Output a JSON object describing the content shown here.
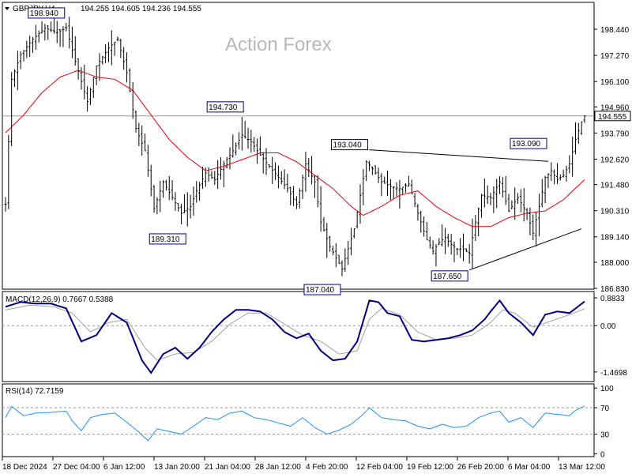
{
  "header": {
    "symbol": "GBPJPY,H4",
    "ohlc": "194.255 194.605 194.236 194.555"
  },
  "watermark": "Action Forex",
  "colors": {
    "candle": "#000000",
    "ma": "#e8000b",
    "macd": "#000080",
    "signal": "#a0a0a0",
    "rsi": "#1e90ff",
    "trendline": "#000000",
    "grid_h": "#9a9a9a"
  },
  "chart_data": [
    {
      "type": "line",
      "title": "GBPJPY,H4",
      "subtype": "bar-ohlc",
      "ylim": [
        186.83,
        199.61
      ],
      "y_ticks": [
        "198.440",
        "197.270",
        "196.100",
        "194.960",
        "193.790",
        "192.620",
        "191.480",
        "190.310",
        "189.140",
        "188.000",
        "186.830"
      ],
      "x_ticks": [
        "18 Dec 2024",
        "27 Dec 04:00",
        "6 Jan 12:00",
        "13 Jan 20:00",
        "21 Jan 04:00",
        "28 Jan 12:00",
        "4 Feb 20:00",
        "12 Feb 04:00",
        "19 Feb 12:00",
        "26 Feb 20:00",
        "6 Mar 04:00",
        "13 Mar 12:00"
      ],
      "current_price": "194.555",
      "annotations": [
        {
          "label": "198.940",
          "bar": 20,
          "value": 198.94
        },
        {
          "label": "194.730",
          "bar": 79,
          "value": 194.73
        },
        {
          "label": "189.310",
          "bar": 60,
          "value": 189.31
        },
        {
          "label": "187.040",
          "bar": 111,
          "value": 187.04
        },
        {
          "label": "193.040",
          "bar": 120,
          "value": 193.04
        },
        {
          "label": "193.090",
          "bar": 179,
          "value": 193.09
        },
        {
          "label": "187.650",
          "bar": 153,
          "value": 187.65
        }
      ],
      "trendlines": [
        {
          "from": {
            "bar": 120,
            "value": 193.04
          },
          "to": {
            "bar": 179,
            "value": 192.52
          }
        },
        {
          "from": {
            "bar": 153,
            "value": 187.65
          },
          "to": {
            "bar": 190,
            "value": 189.5
          }
        }
      ],
      "close_path": [
        [
          0,
          190.6
        ],
        [
          2,
          196.2
        ],
        [
          5,
          197.3
        ],
        [
          9,
          198.0
        ],
        [
          13,
          198.5
        ],
        [
          17,
          198.3
        ],
        [
          20,
          198.5
        ],
        [
          23,
          197.0
        ],
        [
          27,
          195.2
        ],
        [
          30,
          196.8
        ],
        [
          34,
          197.6
        ],
        [
          37,
          198.0
        ],
        [
          40,
          196.5
        ],
        [
          43,
          194.0
        ],
        [
          46,
          193.0
        ],
        [
          49,
          190.4
        ],
        [
          52,
          191.6
        ],
        [
          55,
          190.9
        ],
        [
          58,
          190.2
        ],
        [
          61,
          190.5
        ],
        [
          63,
          191.2
        ],
        [
          66,
          192.0
        ],
        [
          69,
          191.7
        ],
        [
          72,
          192.4
        ],
        [
          75,
          193.0
        ],
        [
          78,
          193.7
        ],
        [
          81,
          193.4
        ],
        [
          84,
          192.8
        ],
        [
          87,
          192.3
        ],
        [
          90,
          191.8
        ],
        [
          93,
          191.3
        ],
        [
          96,
          190.6
        ],
        [
          99,
          192.4
        ],
        [
          102,
          191.6
        ],
        [
          104,
          189.8
        ],
        [
          107,
          188.7
        ],
        [
          109,
          188.2
        ],
        [
          111,
          187.7
        ],
        [
          113,
          188.6
        ],
        [
          115,
          189.5
        ],
        [
          117,
          191.0
        ],
        [
          119,
          192.5
        ],
        [
          121,
          192.2
        ],
        [
          124,
          191.6
        ],
        [
          127,
          191.4
        ],
        [
          130,
          191.3
        ],
        [
          133,
          191.5
        ],
        [
          136,
          190.2
        ],
        [
          139,
          189.0
        ],
        [
          141,
          188.5
        ],
        [
          143,
          188.9
        ],
        [
          145,
          189.1
        ],
        [
          147,
          188.8
        ],
        [
          149,
          188.6
        ],
        [
          151,
          188.6
        ],
        [
          153,
          188.4
        ],
        [
          155,
          189.8
        ],
        [
          157,
          191.0
        ],
        [
          160,
          190.9
        ],
        [
          163,
          191.6
        ],
        [
          166,
          190.3
        ],
        [
          169,
          190.9
        ],
        [
          172,
          190.2
        ],
        [
          174,
          189.3
        ],
        [
          176,
          190.5
        ],
        [
          178,
          191.8
        ],
        [
          180,
          192.1
        ],
        [
          182,
          191.7
        ],
        [
          184,
          191.9
        ],
        [
          186,
          192.4
        ],
        [
          188,
          193.5
        ],
        [
          190,
          194.3
        ],
        [
          191,
          194.555
        ]
      ],
      "ma_path": [
        [
          0,
          193.8
        ],
        [
          6,
          194.6
        ],
        [
          12,
          195.6
        ],
        [
          18,
          196.3
        ],
        [
          24,
          196.6
        ],
        [
          30,
          196.3
        ],
        [
          36,
          196.2
        ],
        [
          42,
          195.7
        ],
        [
          48,
          194.6
        ],
        [
          54,
          193.5
        ],
        [
          60,
          192.7
        ],
        [
          66,
          192.1
        ],
        [
          72,
          192.3
        ],
        [
          78,
          192.6
        ],
        [
          84,
          192.9
        ],
        [
          90,
          192.9
        ],
        [
          96,
          192.5
        ],
        [
          102,
          191.9
        ],
        [
          108,
          191.3
        ],
        [
          114,
          190.5
        ],
        [
          118,
          190.1
        ],
        [
          124,
          190.5
        ],
        [
          130,
          191.0
        ],
        [
          136,
          191.2
        ],
        [
          142,
          190.5
        ],
        [
          148,
          190.0
        ],
        [
          154,
          189.6
        ],
        [
          160,
          189.6
        ],
        [
          166,
          190.0
        ],
        [
          172,
          190.2
        ],
        [
          178,
          190.3
        ],
        [
          184,
          190.8
        ],
        [
          191,
          191.7
        ]
      ]
    },
    {
      "type": "line",
      "title": "MACD(12,26,9) 0.7667 0.5388",
      "ylim": [
        -1.75,
        1.06
      ],
      "y_ticks": [
        "0.8833",
        "0.00",
        "-1.4698"
      ],
      "macd_values": "0.7667",
      "signal_values": "0.5388",
      "macd_path": [
        [
          0,
          0.6
        ],
        [
          5,
          0.75
        ],
        [
          10,
          0.7
        ],
        [
          15,
          0.7
        ],
        [
          20,
          0.55
        ],
        [
          25,
          -0.5
        ],
        [
          30,
          -0.3
        ],
        [
          35,
          0.4
        ],
        [
          40,
          0.1
        ],
        [
          45,
          -1.1
        ],
        [
          48,
          -1.5
        ],
        [
          52,
          -0.9
        ],
        [
          56,
          -0.7
        ],
        [
          60,
          -1.05
        ],
        [
          64,
          -0.7
        ],
        [
          68,
          -0.2
        ],
        [
          72,
          0.2
        ],
        [
          76,
          0.5
        ],
        [
          80,
          0.5
        ],
        [
          84,
          0.45
        ],
        [
          88,
          0.2
        ],
        [
          92,
          -0.2
        ],
        [
          96,
          -0.4
        ],
        [
          100,
          -0.25
        ],
        [
          104,
          -0.8
        ],
        [
          108,
          -1.1
        ],
        [
          112,
          -1.05
        ],
        [
          116,
          -0.5
        ],
        [
          120,
          0.8
        ],
        [
          123,
          0.75
        ],
        [
          126,
          0.4
        ],
        [
          130,
          0.3
        ],
        [
          134,
          -0.45
        ],
        [
          138,
          -0.5
        ],
        [
          142,
          -0.45
        ],
        [
          146,
          -0.4
        ],
        [
          150,
          -0.3
        ],
        [
          154,
          -0.15
        ],
        [
          158,
          0.2
        ],
        [
          160,
          0.45
        ],
        [
          163,
          0.8
        ],
        [
          166,
          0.4
        ],
        [
          170,
          0.1
        ],
        [
          174,
          -0.3
        ],
        [
          178,
          0.35
        ],
        [
          182,
          0.45
        ],
        [
          186,
          0.4
        ],
        [
          191,
          0.7667
        ]
      ],
      "signal_path": [
        [
          0,
          0.5
        ],
        [
          8,
          0.65
        ],
        [
          16,
          0.6
        ],
        [
          22,
          0.4
        ],
        [
          28,
          -0.2
        ],
        [
          34,
          0.1
        ],
        [
          40,
          0.2
        ],
        [
          46,
          -0.7
        ],
        [
          50,
          -1.1
        ],
        [
          56,
          -0.9
        ],
        [
          62,
          -0.85
        ],
        [
          68,
          -0.5
        ],
        [
          74,
          0.05
        ],
        [
          80,
          0.4
        ],
        [
          86,
          0.4
        ],
        [
          92,
          0.05
        ],
        [
          98,
          -0.3
        ],
        [
          104,
          -0.5
        ],
        [
          110,
          -0.9
        ],
        [
          116,
          -0.8
        ],
        [
          120,
          0.2
        ],
        [
          124,
          0.55
        ],
        [
          130,
          0.35
        ],
        [
          136,
          -0.2
        ],
        [
          142,
          -0.45
        ],
        [
          148,
          -0.4
        ],
        [
          154,
          -0.3
        ],
        [
          160,
          0.1
        ],
        [
          164,
          0.5
        ],
        [
          168,
          0.4
        ],
        [
          174,
          -0.05
        ],
        [
          180,
          0.15
        ],
        [
          186,
          0.35
        ],
        [
          191,
          0.5388
        ]
      ]
    },
    {
      "type": "line",
      "title": "RSI(14) 72.7159",
      "ylim": [
        0,
        100
      ],
      "y_ticks": [
        "100",
        "70",
        "30",
        "0"
      ],
      "levels": [
        70,
        30
      ],
      "rsi_path": [
        [
          0,
          55
        ],
        [
          2,
          72
        ],
        [
          6,
          58
        ],
        [
          10,
          62
        ],
        [
          15,
          63
        ],
        [
          20,
          65
        ],
        [
          22,
          50
        ],
        [
          25,
          35
        ],
        [
          28,
          55
        ],
        [
          32,
          60
        ],
        [
          36,
          62
        ],
        [
          40,
          48
        ],
        [
          44,
          33
        ],
        [
          47,
          20
        ],
        [
          50,
          38
        ],
        [
          54,
          34
        ],
        [
          58,
          30
        ],
        [
          62,
          42
        ],
        [
          66,
          55
        ],
        [
          70,
          52
        ],
        [
          74,
          62
        ],
        [
          78,
          65
        ],
        [
          82,
          55
        ],
        [
          86,
          52
        ],
        [
          90,
          47
        ],
        [
          94,
          42
        ],
        [
          98,
          55
        ],
        [
          102,
          40
        ],
        [
          106,
          30
        ],
        [
          110,
          36
        ],
        [
          114,
          45
        ],
        [
          118,
          60
        ],
        [
          120,
          70
        ],
        [
          124,
          55
        ],
        [
          128,
          52
        ],
        [
          132,
          50
        ],
        [
          136,
          42
        ],
        [
          140,
          38
        ],
        [
          144,
          45
        ],
        [
          148,
          40
        ],
        [
          152,
          42
        ],
        [
          156,
          55
        ],
        [
          160,
          62
        ],
        [
          163,
          65
        ],
        [
          166,
          48
        ],
        [
          170,
          55
        ],
        [
          174,
          40
        ],
        [
          178,
          62
        ],
        [
          182,
          60
        ],
        [
          186,
          58
        ],
        [
          188,
          66
        ],
        [
          191,
          72.7159
        ]
      ]
    }
  ]
}
